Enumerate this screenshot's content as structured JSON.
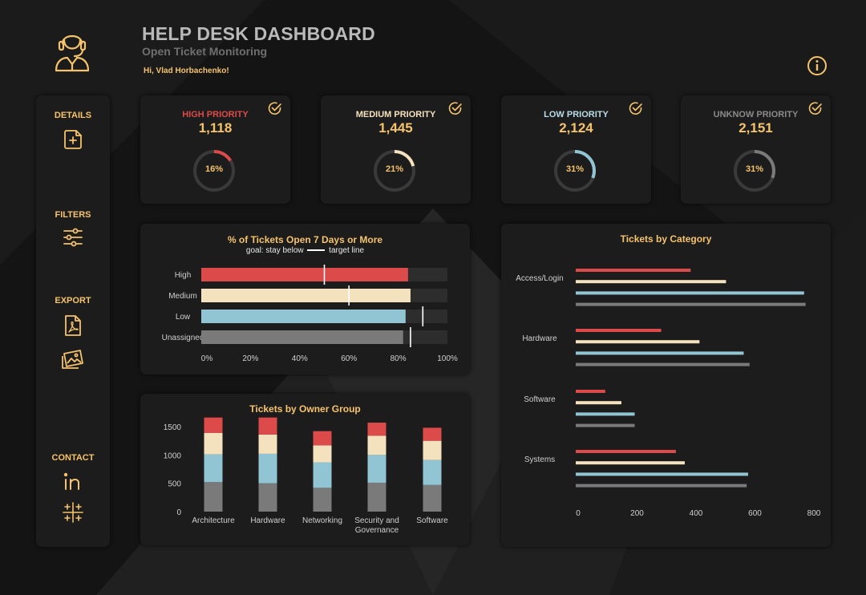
{
  "header": {
    "title": "HELP DESK DASHBOARD",
    "subtitle": "Open Ticket Monitoring",
    "greeting": "Hi, Vlad Horbachenko!"
  },
  "icons": {
    "logo": "support-agent-icon",
    "info": "info-icon",
    "details": "add-file-icon",
    "filters": "sliders-icon",
    "export_pdf": "pdf-file-icon",
    "export_image": "image-icon",
    "linkedin": "linkedin-icon",
    "tableau": "tableau-icon",
    "kpi_check": "check-circle-icon"
  },
  "sidebar": {
    "details_label": "DETAILS",
    "filters_label": "FILTERS",
    "export_label": "EXPORT",
    "contact_label": "CONTACT"
  },
  "colors": {
    "gold": "#f5c36b",
    "high": "#dc4a4a",
    "medium": "#f4e1bd",
    "low": "#92c5d3",
    "unassigned": "#7a7a7a",
    "panel": "#1d1c1c",
    "track": "#2d2d2d"
  },
  "kpis": [
    {
      "label": "HIGH PRIORITY",
      "value": "1,118",
      "percent_label": "16%",
      "percent": 16,
      "label_color": "#dc4a4a",
      "ring_color": "#dc4a4a"
    },
    {
      "label": "MEDIUM PRIORITY",
      "value": "1,445",
      "percent_label": "21%",
      "percent": 21,
      "label_color": "#f4e1bd",
      "ring_color": "#f4e1bd"
    },
    {
      "label": "LOW PRIORITY",
      "value": "2,124",
      "percent_label": "31%",
      "percent": 31,
      "label_color": "#b9dce6",
      "ring_color": "#92c5d3"
    },
    {
      "label": "UNKNOW PRIORITY",
      "value": "2,151",
      "percent_label": "31%",
      "percent": 31,
      "label_color": "#8a8a8a",
      "ring_color": "#7a7a7a"
    }
  ],
  "chart_data": [
    {
      "type": "bar",
      "orientation": "horizontal",
      "title": "% of Tickets Open 7 Days or More",
      "note": {
        "prefix": "goal: stay below",
        "suffix": "target line"
      },
      "categories": [
        "High",
        "Medium",
        "Low",
        "Unassigned"
      ],
      "values": [
        84,
        85,
        83,
        82
      ],
      "targets": [
        50,
        60,
        90,
        85
      ],
      "xlim": [
        0,
        100
      ],
      "xticks": [
        "0%",
        "20%",
        "40%",
        "60%",
        "80%",
        "100%"
      ],
      "colors": [
        "#dc4a4a",
        "#f4e1bd",
        "#92c5d3",
        "#7a7a7a"
      ]
    },
    {
      "type": "bar",
      "stacked": true,
      "title": "Tickets by Owner Group",
      "categories": [
        "Architecture",
        "Hardware",
        "Networking",
        "Security and Governance",
        "Software"
      ],
      "category_lines": [
        [
          "Architecture"
        ],
        [
          "Hardware"
        ],
        [
          "Networking"
        ],
        [
          "Security and",
          "Governance"
        ],
        [
          "Software"
        ]
      ],
      "series": [
        {
          "key": "unassigned",
          "values": [
            520,
            500,
            420,
            510,
            470
          ],
          "color": "#7a7a7a"
        },
        {
          "key": "low",
          "values": [
            490,
            520,
            450,
            490,
            440
          ],
          "color": "#92c5d3"
        },
        {
          "key": "medium",
          "values": [
            380,
            340,
            300,
            340,
            340
          ],
          "color": "#f4e1bd"
        },
        {
          "key": "high",
          "values": [
            270,
            300,
            250,
            230,
            230
          ],
          "color": "#dc4a4a"
        }
      ],
      "ylim": [
        0,
        1500
      ],
      "yticks": [
        "0",
        "500",
        "1000",
        "1500"
      ]
    },
    {
      "type": "bar",
      "orientation": "horizontal",
      "grouped": true,
      "title": "Tickets by Category",
      "categories": [
        "Access/Login",
        "Hardware",
        "Software",
        "Systems"
      ],
      "series": [
        {
          "key": "high",
          "values": [
            390,
            290,
            100,
            340
          ],
          "color": "#dc4a4a"
        },
        {
          "key": "medium",
          "values": [
            510,
            420,
            155,
            370
          ],
          "color": "#f4e1bd"
        },
        {
          "key": "low",
          "values": [
            775,
            570,
            200,
            585
          ],
          "color": "#92c5d3"
        },
        {
          "key": "unassigned",
          "values": [
            780,
            590,
            200,
            580
          ],
          "color": "#7a7a7a"
        }
      ],
      "xlim": [
        0,
        800
      ],
      "xticks": [
        "0",
        "200",
        "400",
        "600",
        "800"
      ]
    }
  ]
}
